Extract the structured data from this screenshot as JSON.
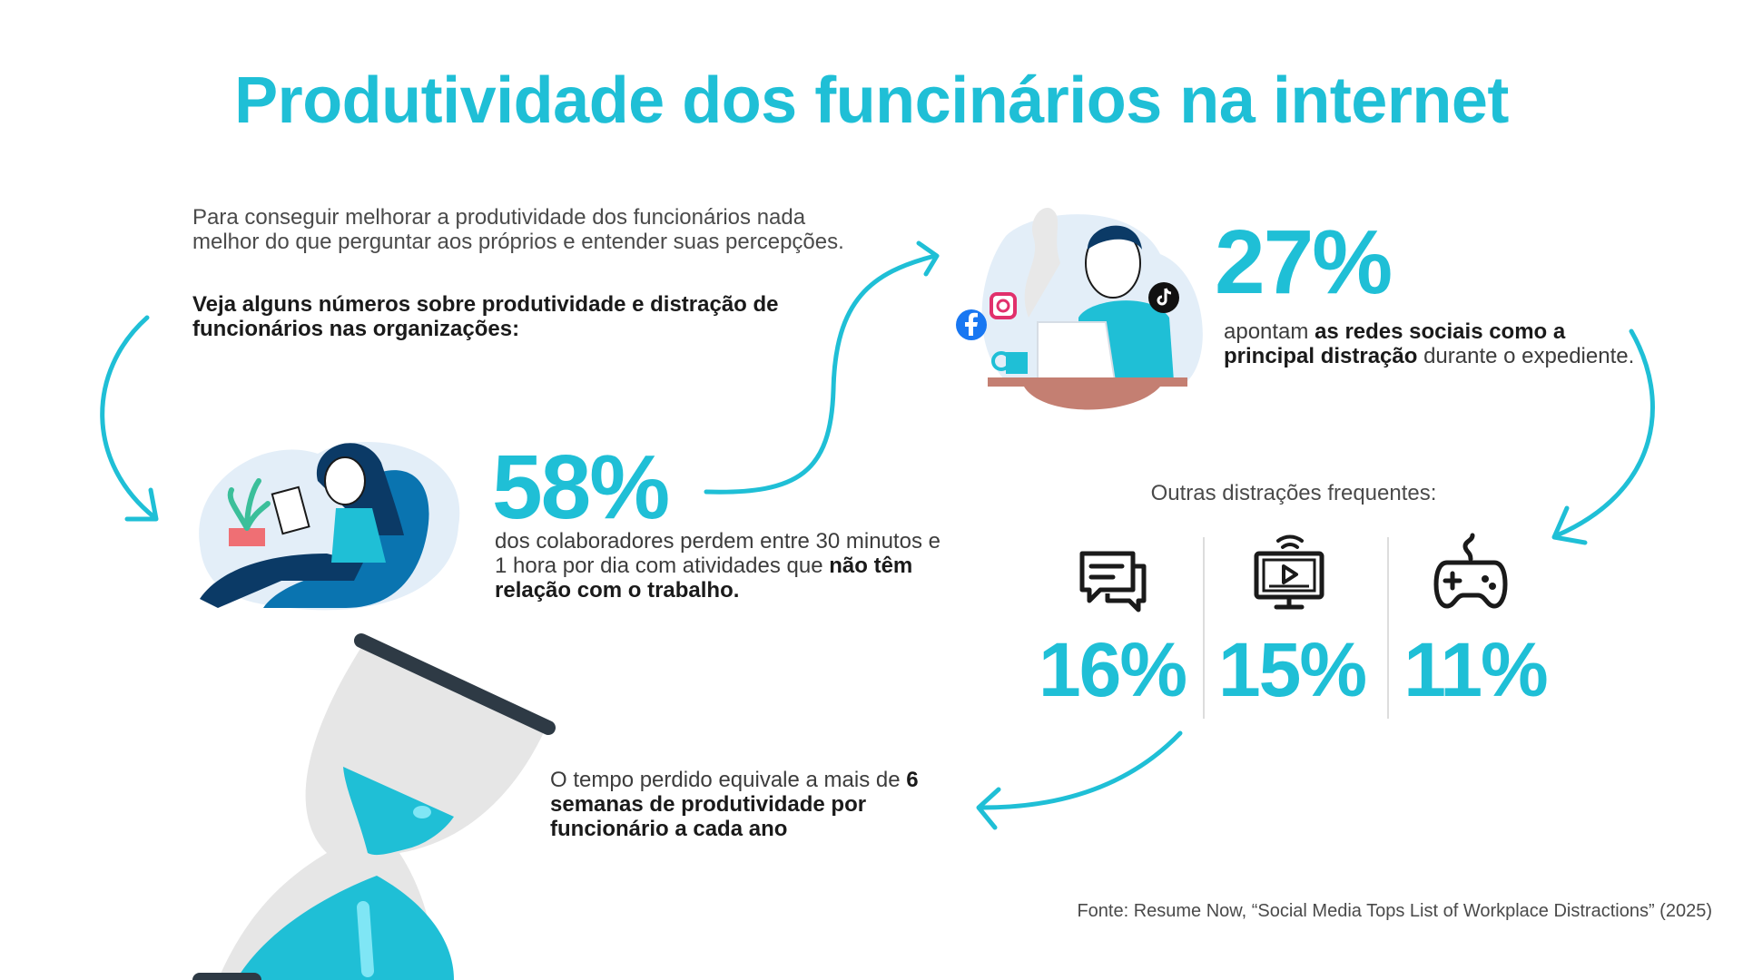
{
  "title": "Produtividade dos funcinários na internet",
  "intro": {
    "text": "Para conseguir melhorar a produtividade dos funcionários nada melhor do que perguntar aos próprios e entender suas percepções.",
    "bold": "Veja alguns números sobre produtividade e distração de funcionários nas organizações:"
  },
  "stat58": {
    "value": "58%",
    "desc_plain": "dos colaboradores perdem entre 30 minutos e 1 hora por dia com atividades que ",
    "desc_bold": "não têm relação com o trabalho."
  },
  "stat27": {
    "value": "27%",
    "desc_plain_1": "apontam ",
    "desc_bold": "as redes sociais como a principal distração",
    "desc_plain_2": " durante o expediente."
  },
  "others": {
    "label": "Outras distrações frequentes:",
    "items": [
      {
        "icon": "chat-icon",
        "value": "16%"
      },
      {
        "icon": "video-screen-icon",
        "value": "15%"
      },
      {
        "icon": "gamepad-icon",
        "value": "11%"
      }
    ]
  },
  "time_lost": {
    "plain": "O tempo perdido equivale a mais de ",
    "bold": "6 semanas de produtividade por funcionário a cada ano"
  },
  "source": "Fonte: Resume Now, “Social Media Tops List of Workplace Distractions” (2025)",
  "colors": {
    "accent": "#1fbfd6",
    "dark_blue": "#0b3a66",
    "mid_blue": "#0a74b0",
    "light_blue": "#e3eef8",
    "table": "#c47f72"
  }
}
